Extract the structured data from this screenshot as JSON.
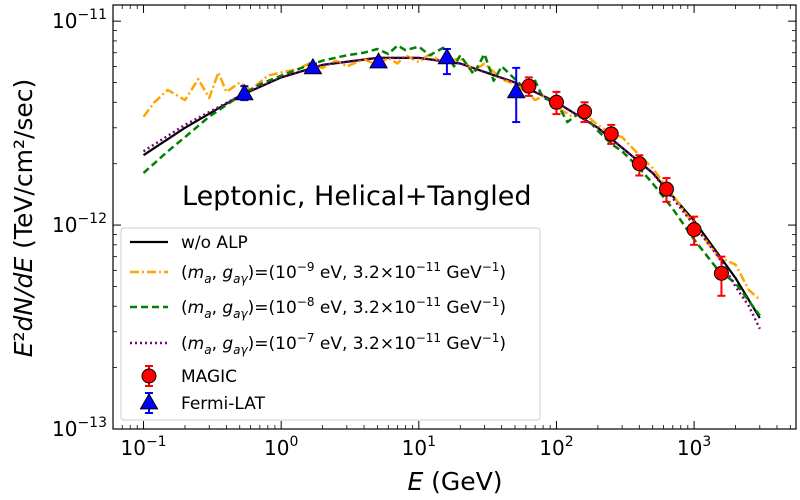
{
  "chart_data": {
    "type": "line",
    "xlabel": "E (GeV)",
    "ylabel": "E²dN/dE (TeV/cm²/sec)",
    "xscale": "log",
    "yscale": "log",
    "xlim": [
      0.06,
      5500
    ],
    "ylim": [
      1e-13,
      1.2e-11
    ],
    "x_ticks": [
      {
        "value": 0.1,
        "base": "10",
        "exp": "−1"
      },
      {
        "value": 1,
        "base": "10",
        "exp": "0"
      },
      {
        "value": 10,
        "base": "10",
        "exp": "1"
      },
      {
        "value": 100,
        "base": "10",
        "exp": "2"
      },
      {
        "value": 1000,
        "base": "10",
        "exp": "3"
      }
    ],
    "y_ticks": [
      {
        "value": 1e-13,
        "base": "10",
        "exp": "−13"
      },
      {
        "value": 1e-12,
        "base": "10",
        "exp": "−12"
      },
      {
        "value": 1e-11,
        "base": "10",
        "exp": "−11"
      }
    ],
    "annotation": "Leptonic, Helical+Tangled",
    "grid": false,
    "legend_position": "lower-left",
    "series": [
      {
        "name": "w/o ALP",
        "color": "#000000",
        "style": "solid",
        "x": [
          0.1,
          0.2,
          0.5,
          1,
          2,
          5,
          10,
          20,
          50,
          100,
          200,
          500,
          1000,
          2000,
          3000
        ],
        "y": [
          2.2e-12,
          3e-12,
          4.3e-12,
          5.3e-12,
          6.1e-12,
          6.6e-12,
          6.6e-12,
          6.2e-12,
          5e-12,
          4e-12,
          3e-12,
          1.8e-12,
          1.05e-12,
          5.5e-13,
          3.5e-13
        ]
      },
      {
        "name": "(m_a, g_aγ)=(10⁻⁹ eV, 3.2×10⁻¹¹ GeV⁻¹)",
        "legend": {
          "pre": "(",
          "a1": "m",
          "s1": "a",
          "mid1": ", ",
          "a2": "g",
          "s2": "aγ",
          "mid2": ")=(10",
          "e1": "−9",
          "mid3": " eV, 3.2×10",
          "e2": "−11",
          "mid4": " GeV",
          "e3": "−1",
          "post": ")"
        },
        "color": "#ffa500",
        "style": "dashdot",
        "x": [
          0.1,
          0.12,
          0.15,
          0.2,
          0.25,
          0.3,
          0.35,
          0.4,
          0.5,
          0.6,
          0.8,
          1,
          1.3,
          1.6,
          2,
          2.5,
          3,
          4,
          5,
          6,
          7,
          8,
          10,
          12,
          15,
          20,
          25,
          30,
          40,
          50,
          60,
          70,
          80,
          100,
          130,
          160,
          200,
          250,
          300,
          400,
          500,
          700,
          1000,
          1500,
          2000,
          2500,
          3000
        ],
        "y": [
          3.4e-12,
          4e-12,
          4.6e-12,
          4.1e-12,
          5.2e-12,
          4.2e-12,
          5.6e-12,
          4.5e-12,
          5e-12,
          4.6e-12,
          5.4e-12,
          5.6e-12,
          5.8e-12,
          6.2e-12,
          5.9e-12,
          6.4e-12,
          6e-12,
          6.5e-12,
          6.1e-12,
          6.6e-12,
          6.2e-12,
          6.8e-12,
          6.3e-12,
          6.9e-12,
          6.2e-12,
          6.6e-12,
          5.7e-12,
          6.2e-12,
          5.2e-12,
          4.9e-12,
          4.5e-12,
          4.1e-12,
          4.3e-12,
          3.8e-12,
          3.4e-12,
          3.5e-12,
          3.1e-12,
          2.8e-12,
          2.7e-12,
          2.2e-12,
          1.9e-12,
          1.4e-12,
          1e-12,
          7e-13,
          6.4e-13,
          4.8e-13,
          4.3e-13
        ]
      },
      {
        "name": "(m_a, g_aγ)=(10⁻⁸ eV, 3.2×10⁻¹¹ GeV⁻¹)",
        "legend": {
          "pre": "(",
          "a1": "m",
          "s1": "a",
          "mid1": ", ",
          "a2": "g",
          "s2": "aγ",
          "mid2": ")=(10",
          "e1": "−8",
          "mid3": " eV, 3.2×10",
          "e2": "−11",
          "mid4": " GeV",
          "e3": "−1",
          "post": ")"
        },
        "color": "#008000",
        "style": "dashed",
        "x": [
          0.1,
          0.15,
          0.2,
          0.3,
          0.5,
          0.7,
          1,
          1.5,
          2,
          3,
          4,
          5,
          6,
          7,
          8,
          10,
          12,
          15,
          18,
          20,
          25,
          30,
          35,
          40,
          50,
          60,
          70,
          80,
          100,
          120,
          150,
          200,
          250,
          300,
          400,
          500,
          700,
          1000,
          1500,
          2000,
          3000
        ],
        "y": [
          1.8e-12,
          2.3e-12,
          2.7e-12,
          3.4e-12,
          4.3e-12,
          4.9e-12,
          5.4e-12,
          6e-12,
          6.4e-12,
          6.8e-12,
          7e-12,
          7.3e-12,
          6.9e-12,
          7.6e-12,
          7.2e-12,
          7.5e-12,
          6.8e-12,
          7.4e-12,
          6e-12,
          6.8e-12,
          5.5e-12,
          6.9e-12,
          5.1e-12,
          6e-12,
          5.2e-12,
          4.6e-12,
          5.1e-12,
          4.2e-12,
          4e-12,
          3.2e-12,
          3.6e-12,
          2.9e-12,
          2.5e-12,
          2.3e-12,
          1.9e-12,
          1.6e-12,
          1.2e-12,
          8.5e-13,
          6e-13,
          5.2e-13,
          3.6e-13
        ]
      },
      {
        "name": "(m_a, g_aγ)=(10⁻⁷ eV, 3.2×10⁻¹¹ GeV⁻¹)",
        "legend": {
          "pre": "(",
          "a1": "m",
          "s1": "a",
          "mid1": ", ",
          "a2": "g",
          "s2": "aγ",
          "mid2": ")=(10",
          "e1": "−7",
          "mid3": " eV, 3.2×10",
          "e2": "−11",
          "mid4": " GeV",
          "e3": "−1",
          "post": ")"
        },
        "color": "#800080",
        "style": "dotted",
        "x": [
          0.1,
          0.2,
          0.5,
          1,
          2,
          5,
          10,
          20,
          50,
          100,
          200,
          500,
          1000,
          1500,
          2000,
          2500,
          3000
        ],
        "y": [
          2.3e-12,
          3.1e-12,
          4.3e-12,
          5.3e-12,
          6.1e-12,
          6.6e-12,
          6.6e-12,
          6.2e-12,
          5e-12,
          4e-12,
          3e-12,
          1.8e-12,
          1e-12,
          7e-13,
          5e-13,
          4e-13,
          3.1e-13
        ]
      }
    ],
    "points": [
      {
        "name": "MAGIC",
        "marker": "circle",
        "color": "#ff0000",
        "error_color": "#ff0000",
        "x": [
          63,
          100,
          160,
          250,
          400,
          630,
          1000,
          1580
        ],
        "y": [
          4.8e-12,
          4e-12,
          3.6e-12,
          2.8e-12,
          2e-12,
          1.5e-12,
          9.5e-13,
          5.8e-13
        ],
        "y_lo": [
          4.3e-12,
          3.5e-12,
          3.2e-12,
          2.5e-12,
          1.75e-12,
          1.3e-12,
          8e-13,
          4.5e-13
        ],
        "y_hi": [
          5.3e-12,
          4.5e-12,
          4e-12,
          3.1e-12,
          2.2e-12,
          1.7e-12,
          1.1e-12,
          7e-13
        ]
      },
      {
        "name": "Fermi-LAT",
        "marker": "triangle",
        "color": "#0000ff",
        "error_color": "#0000ff",
        "x": [
          0.54,
          1.7,
          5.1,
          16,
          51
        ],
        "y": [
          4.4e-12,
          5.9e-12,
          6.3e-12,
          6.6e-12,
          4.5e-12
        ],
        "y_lo": [
          4.1e-12,
          5.6e-12,
          6e-12,
          5.5e-12,
          3.2e-12
        ],
        "y_hi": [
          4.8e-12,
          6.2e-12,
          6.6e-12,
          7.3e-12,
          5.9e-12
        ]
      }
    ]
  }
}
